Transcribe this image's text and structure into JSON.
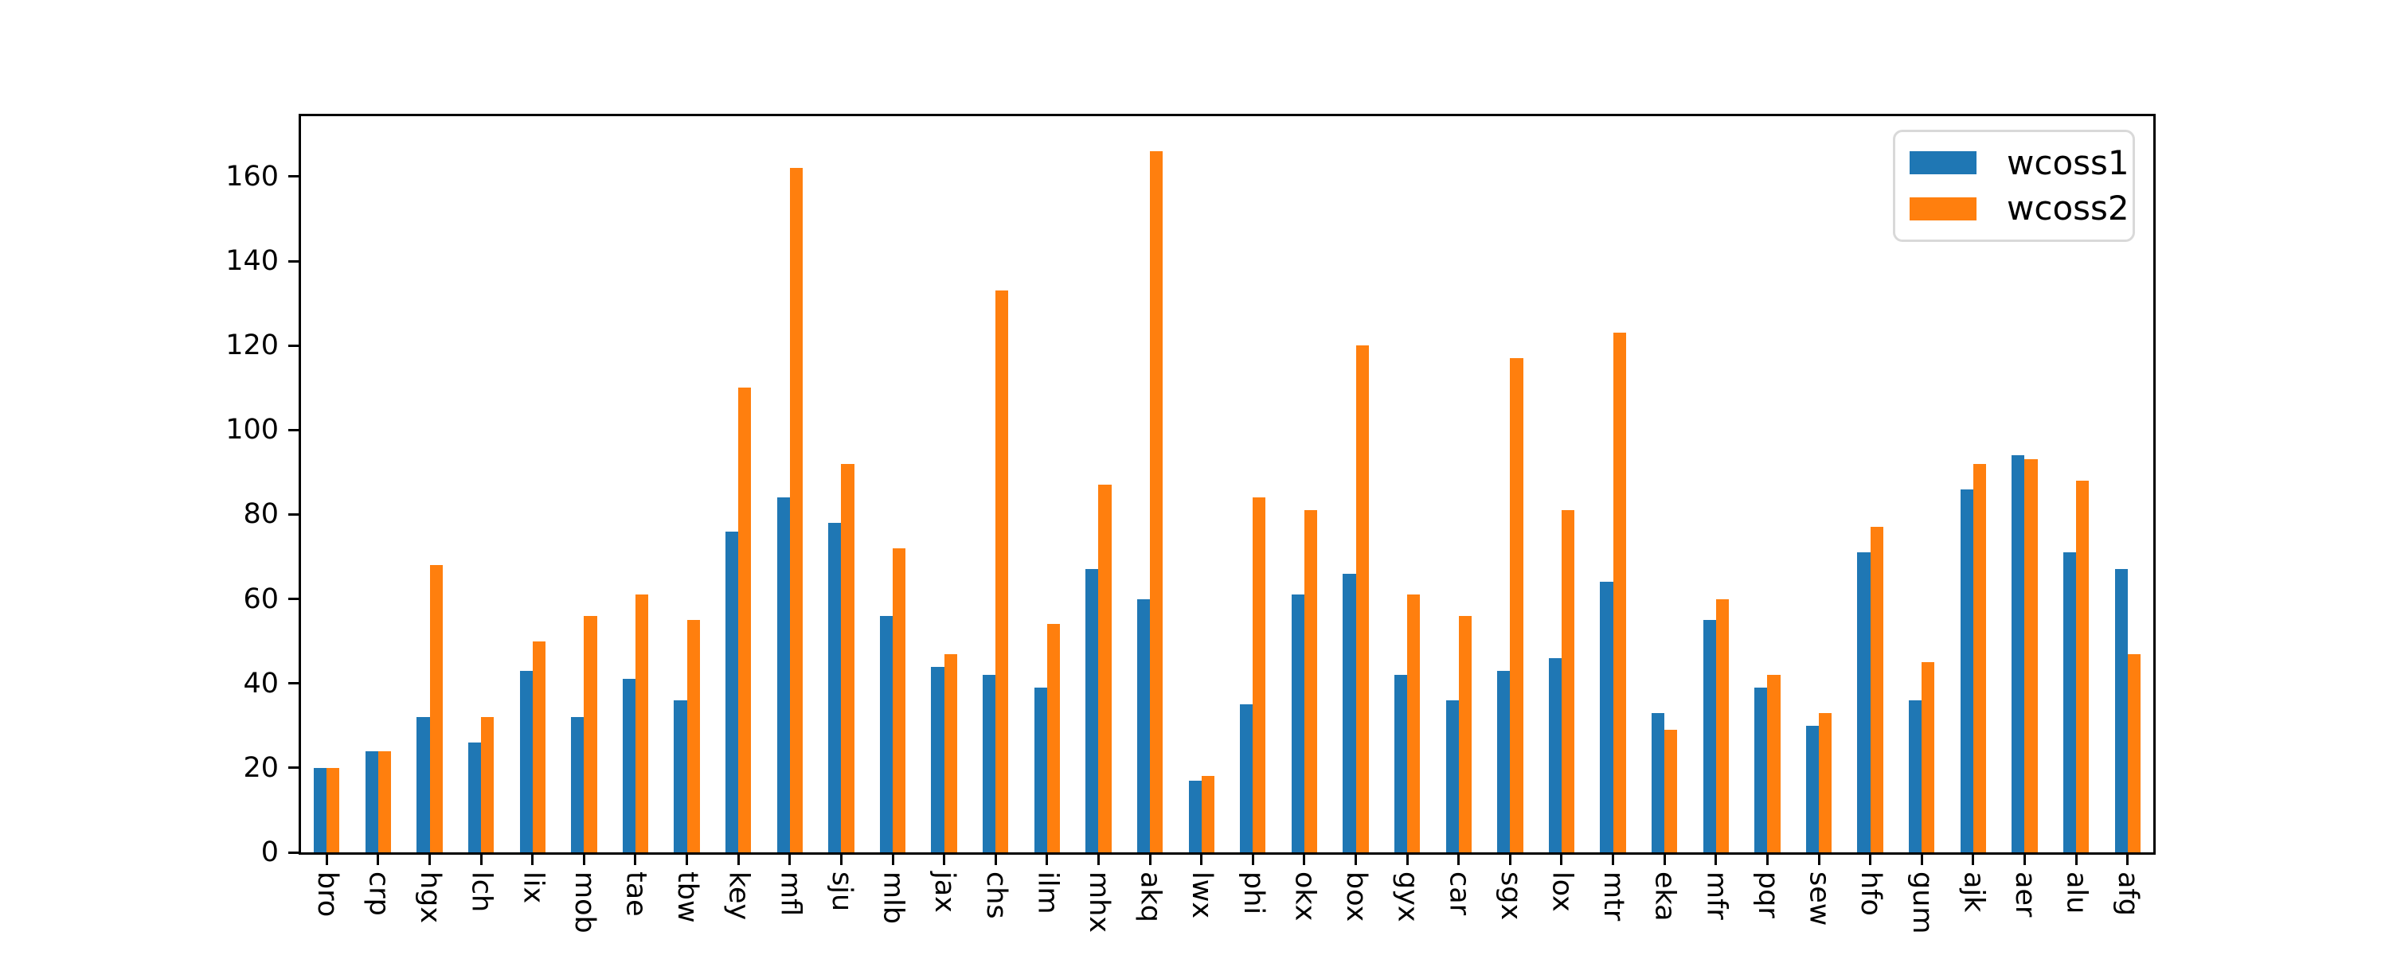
{
  "figure": {
    "background": "#ffffff",
    "text_color": "#000000",
    "axis_color": "#000000"
  },
  "legend": {
    "position": "upper right",
    "items": [
      {
        "label": "wcoss1",
        "color": "#1f77b4"
      },
      {
        "label": "wcoss2",
        "color": "#ff7f0e"
      }
    ]
  },
  "chart_data": {
    "type": "bar",
    "title": "",
    "xlabel": "",
    "ylabel": "",
    "grid": false,
    "legend_position": "upper right",
    "categories": [
      "bro",
      "crp",
      "hgx",
      "lch",
      "lix",
      "mob",
      "tae",
      "tbw",
      "key",
      "mfl",
      "sju",
      "mlb",
      "jax",
      "chs",
      "ilm",
      "mhx",
      "akq",
      "lwx",
      "phi",
      "okx",
      "box",
      "gyx",
      "car",
      "sgx",
      "lox",
      "mtr",
      "eka",
      "mfr",
      "pqr",
      "sew",
      "hfo",
      "gum",
      "ajk",
      "aer",
      "alu",
      "afg"
    ],
    "series": [
      {
        "name": "wcoss1",
        "color": "#1f77b4",
        "values": [
          20,
          24,
          32,
          26,
          43,
          32,
          41,
          36,
          76,
          84,
          78,
          56,
          44,
          42,
          39,
          67,
          60,
          17,
          35,
          61,
          66,
          42,
          36,
          43,
          46,
          64,
          33,
          55,
          39,
          30,
          71,
          36,
          86,
          94,
          71,
          67
        ]
      },
      {
        "name": "wcoss2",
        "color": "#ff7f0e",
        "values": [
          20,
          24,
          68,
          32,
          50,
          56,
          61,
          55,
          110,
          162,
          92,
          72,
          47,
          133,
          54,
          87,
          166,
          18,
          84,
          81,
          120,
          61,
          56,
          117,
          81,
          123,
          29,
          60,
          42,
          33,
          77,
          45,
          92,
          93,
          88,
          47
        ]
      }
    ],
    "ylim": [
      0,
      174.3
    ],
    "yticks": [
      0,
      20,
      40,
      60,
      80,
      100,
      120,
      140,
      160
    ],
    "x_tick_label_rotation": 90,
    "bar_group_fraction": 0.5
  }
}
